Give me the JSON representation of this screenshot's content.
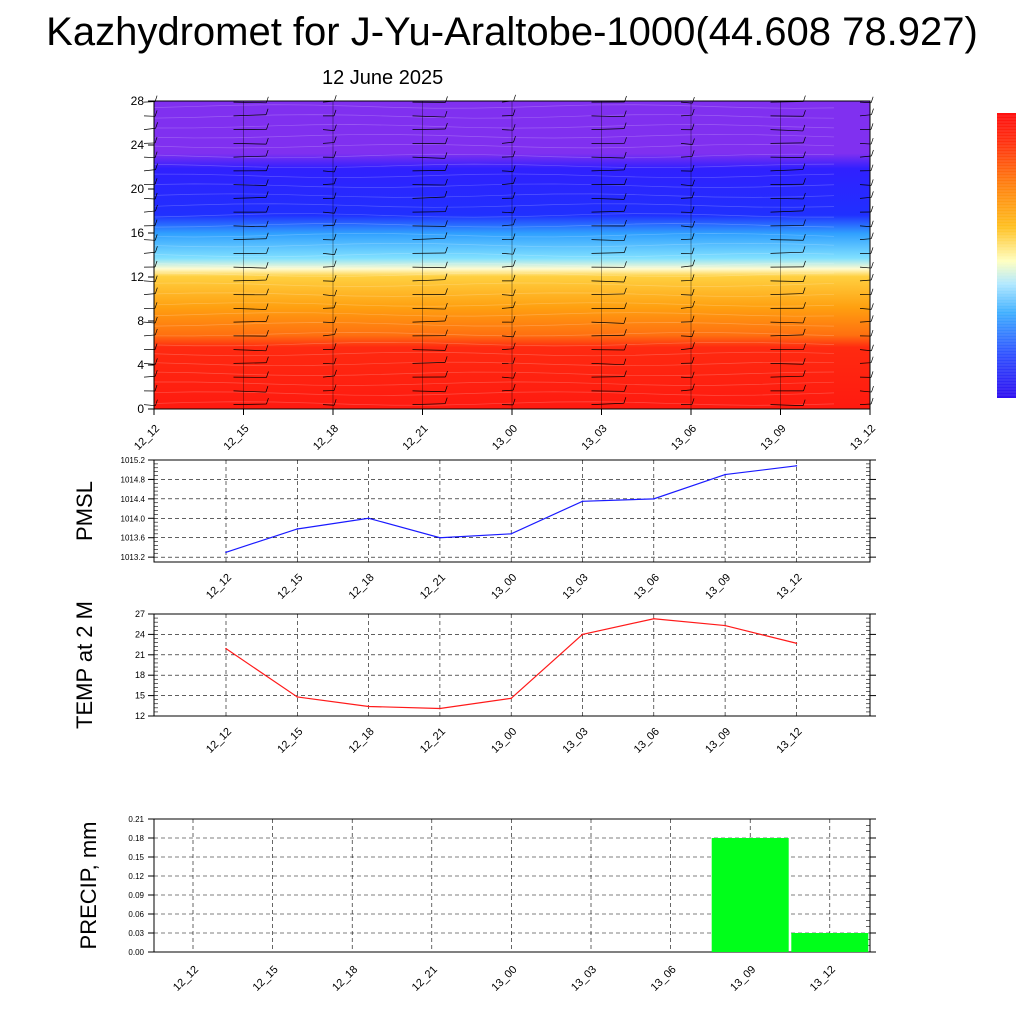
{
  "header": {
    "title": "Kazhydromet for J-Yu-Araltobe-1000(44.608 78.927)",
    "date": "12 June 2025"
  },
  "colors": {
    "pressure_line": "#1a1aff",
    "temp_line": "#ff1a1a",
    "precip_bar": "#00ff1a"
  },
  "chart_data": [
    {
      "type": "heatmap",
      "title": "",
      "x_categories": [
        "12_12",
        "12_15",
        "12_18",
        "12_21",
        "13_00",
        "13_03",
        "13_06",
        "13_09",
        "13_12"
      ],
      "ylim": [
        0,
        28
      ],
      "y_ticks": [
        "0",
        "4",
        "8",
        "12",
        "16",
        "20",
        "24",
        "28"
      ],
      "color_bands": [
        {
          "y_from": 0,
          "y_to": 6,
          "color": "#ff2010"
        },
        {
          "y_from": 6,
          "y_to": 9,
          "color": "#ff7a10"
        },
        {
          "y_from": 9,
          "y_to": 12.5,
          "color": "#ffc040"
        },
        {
          "y_from": 12.5,
          "y_to": 13.5,
          "color": "#fffac0"
        },
        {
          "y_from": 13.5,
          "y_to": 16,
          "color": "#60d0ff"
        },
        {
          "y_from": 16,
          "y_to": 18,
          "color": "#2080ff"
        },
        {
          "y_from": 18,
          "y_to": 22.5,
          "color": "#2020ff"
        },
        {
          "y_from": 22.5,
          "y_to": 28,
          "color": "#8030f0"
        }
      ],
      "wind_barbs": "present at each time column"
    },
    {
      "type": "line",
      "ylabel": "PMSL",
      "x": [
        "12_12",
        "12_15",
        "12_18",
        "12_21",
        "13_00",
        "13_03",
        "13_06",
        "13_09",
        "13_12"
      ],
      "series": [
        {
          "values": [
            1013.3,
            1013.78,
            1014.0,
            1013.6,
            1013.68,
            1014.35,
            1014.4,
            1014.9,
            1015.08
          ]
        }
      ],
      "ylim": [
        1013.1,
        1015.2
      ],
      "y_ticks": [
        "1013.2",
        "1013.6",
        "1014.0",
        "1014.4",
        "1014.8",
        "1015.2"
      ],
      "grid": true
    },
    {
      "type": "line",
      "ylabel": "TEMP at 2 M",
      "x": [
        "12_12",
        "12_15",
        "12_18",
        "12_21",
        "13_00",
        "13_03",
        "13_06",
        "13_09",
        "13_12"
      ],
      "series": [
        {
          "values": [
            21.9,
            14.8,
            13.4,
            13.1,
            14.6,
            24.0,
            26.3,
            25.3,
            22.7
          ]
        }
      ],
      "ylim": [
        12,
        27
      ],
      "y_ticks": [
        "12",
        "15",
        "18",
        "21",
        "24",
        "27"
      ],
      "grid": true
    },
    {
      "type": "bar",
      "ylabel": "PRECIP, mm",
      "categories": [
        "12_12",
        "12_15",
        "12_18",
        "12_21",
        "13_00",
        "13_03",
        "13_06",
        "13_09",
        "13_12"
      ],
      "values": [
        0,
        0,
        0,
        0,
        0,
        0,
        0,
        0.18,
        0.03
      ],
      "ylim": [
        0,
        0.21
      ],
      "y_ticks": [
        "0.00",
        "0.03",
        "0.06",
        "0.09",
        "0.12",
        "0.15",
        "0.18",
        "0.21"
      ],
      "grid": true
    }
  ]
}
